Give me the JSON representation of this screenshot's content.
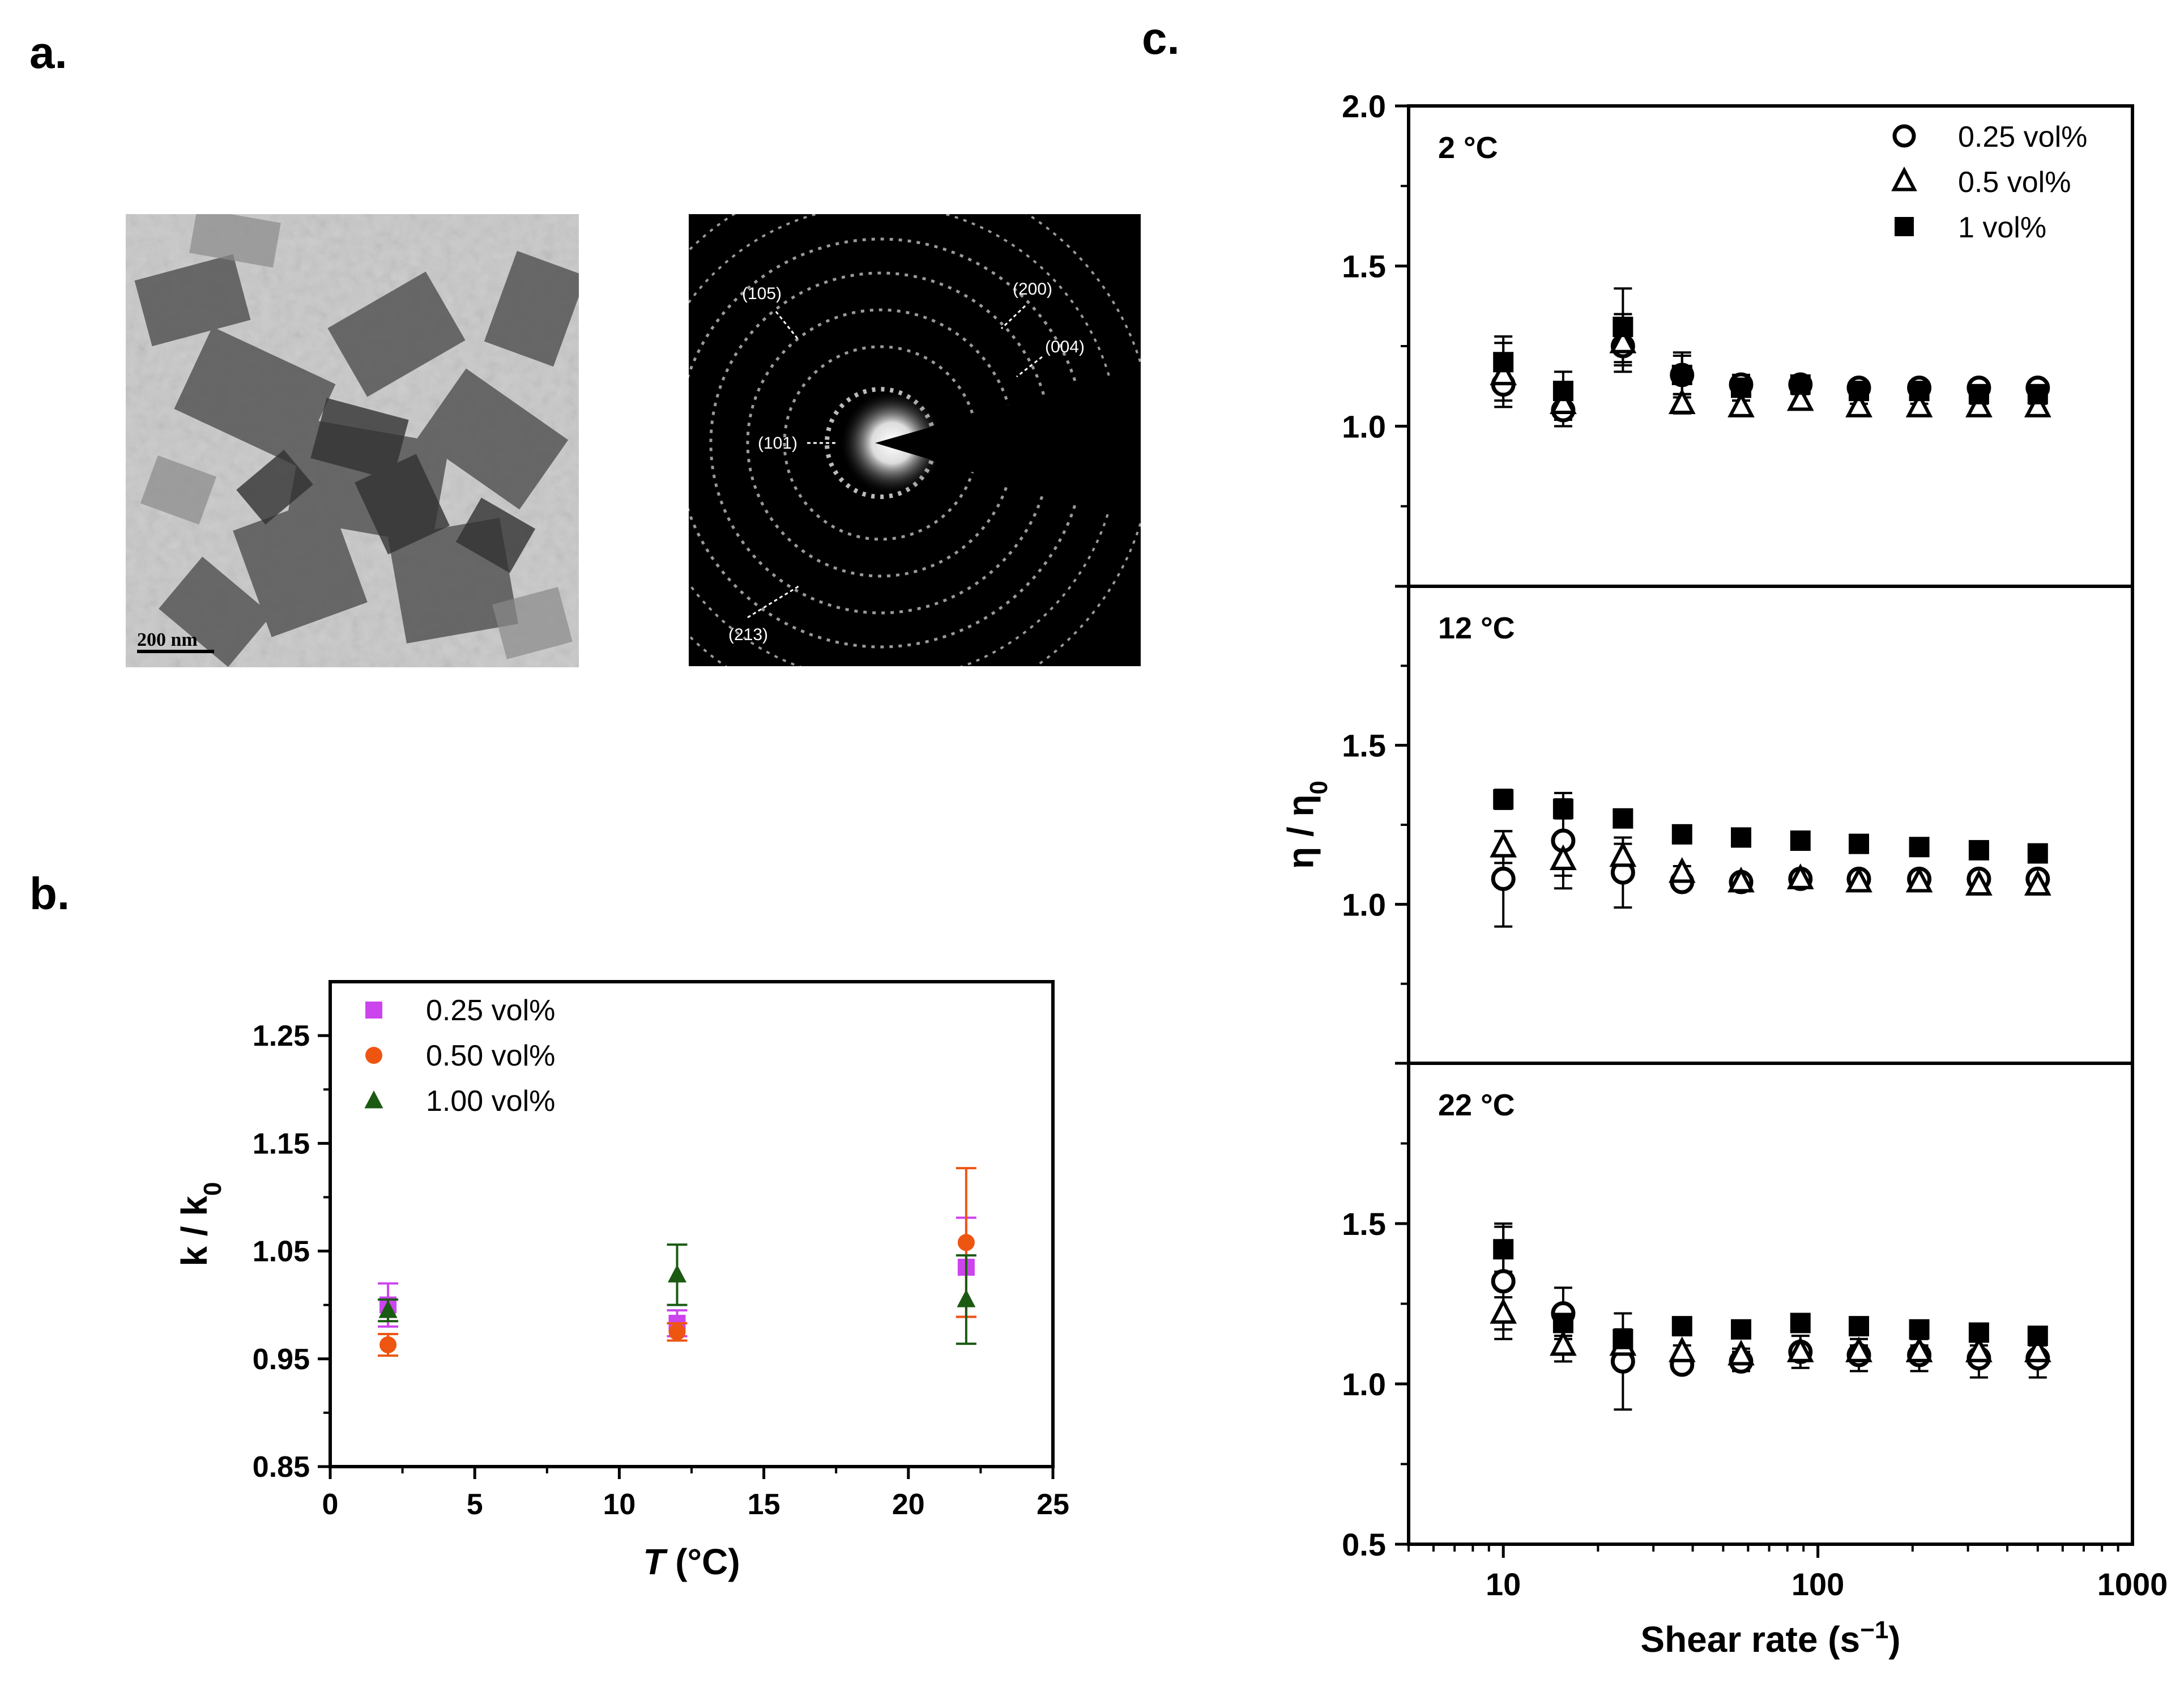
{
  "panel_labels": {
    "a": "a.",
    "b": "b.",
    "c": "c."
  },
  "micrographs": {
    "tem_scale_bar": "200 nm",
    "saed_labels": [
      "(105)",
      "(200)",
      "(004)",
      "(101)",
      "(213)"
    ]
  },
  "colors": {
    "magenta": "#cc44ee",
    "orange": "#ee5511",
    "green": "#1a5a12",
    "black": "#000000"
  },
  "chart_data": [
    {
      "id": "b",
      "type": "scatter",
      "title": "",
      "xlabel_symbol": "T",
      "xlabel_unit": "(°C)",
      "ylabel": "k / k",
      "ylabel_sub": "0",
      "xlim": [
        0,
        25
      ],
      "ylim": [
        0.85,
        1.3
      ],
      "xticks": [
        0,
        5,
        10,
        15,
        20,
        25
      ],
      "yticks": [
        0.85,
        0.95,
        1.05,
        1.15,
        1.25
      ],
      "ytick_labels": [
        "0.85",
        "0.95",
        "1.05",
        "1.15",
        "1.25"
      ],
      "legend_position": "top-left",
      "series": [
        {
          "name": "0.25 vol%",
          "marker": "square",
          "color": "#cc44ee",
          "x": [
            2,
            12,
            22
          ],
          "y": [
            1.0,
            0.983,
            1.035
          ],
          "err": [
            0.02,
            0.012,
            0.046
          ]
        },
        {
          "name": "0.50 vol%",
          "marker": "circle",
          "color": "#ee5511",
          "x": [
            2,
            12,
            22
          ],
          "y": [
            0.963,
            0.975,
            1.058
          ],
          "err": [
            0.01,
            0.008,
            0.069
          ]
        },
        {
          "name": "1.00 vol%",
          "marker": "triangle",
          "color": "#1a5a12",
          "x": [
            2,
            12,
            22
          ],
          "y": [
            0.995,
            1.028,
            1.005
          ],
          "err": [
            0.01,
            0.028,
            0.041
          ]
        }
      ]
    },
    {
      "id": "c",
      "type": "scatter",
      "xlabel": "Shear rate (s",
      "xlabel_sup": "−1",
      "xlabel_end": ")",
      "ylabel": "η / η",
      "ylabel_sub": "0",
      "xscale": "log",
      "xlim": [
        5,
        1000
      ],
      "xticks": [
        10,
        100,
        1000
      ],
      "ylim": [
        0.5,
        2.0
      ],
      "yticks": [
        0.5,
        1.0,
        1.5,
        2.0
      ],
      "ytick_labels": [
        "0.5",
        "1.0",
        "1.5",
        "2.0"
      ],
      "legend_position": "top-right",
      "x": [
        10,
        15.5,
        24,
        37,
        57,
        88,
        135,
        210,
        325,
        500
      ],
      "subplots": [
        {
          "label": "2 °C",
          "ylim": [
            0.5,
            2.0
          ],
          "series": [
            {
              "name": "0.25 vol%",
              "marker": "open-circle",
              "y": [
                1.13,
                1.05,
                1.25,
                1.16,
                1.13,
                1.13,
                1.12,
                1.12,
                1.12,
                1.12
              ],
              "err": [
                0.05,
                0.05,
                0.05,
                0.06,
                0.03,
                0.02,
                0.02,
                0.01,
                0.01,
                0.01
              ]
            },
            {
              "name": "0.5 vol%",
              "marker": "open-triangle",
              "y": [
                1.16,
                1.07,
                1.26,
                1.07,
                1.06,
                1.08,
                1.06,
                1.06,
                1.06,
                1.06
              ],
              "err": [
                0.1,
                0.05,
                0.09,
                0.03,
                0.02,
                0.02,
                0.01,
                0.01,
                0.01,
                0.01
              ]
            },
            {
              "name": "1 vol%",
              "marker": "filled-square",
              "y": [
                1.2,
                1.11,
                1.31,
                1.16,
                1.12,
                1.13,
                1.11,
                1.11,
                1.1,
                1.1
              ],
              "err": [
                0.08,
                0.06,
                0.12,
                0.07,
                0.04,
                0.02,
                0.02,
                0.01,
                0.01,
                0.01
              ]
            }
          ]
        },
        {
          "label": "12 °C",
          "ylim": [
            0.5,
            2.0
          ],
          "series": [
            {
              "name": "0.25 vol%",
              "marker": "open-circle",
              "y": [
                1.08,
                1.2,
                1.1,
                1.07,
                1.07,
                1.08,
                1.08,
                1.08,
                1.08,
                1.08
              ],
              "err": [
                0.15,
                0.15,
                0.11,
                0.02,
                0.02,
                0.02,
                0.02,
                0.02,
                0.02,
                0.02
              ]
            },
            {
              "name": "0.5 vol%",
              "marker": "open-triangle",
              "y": [
                1.18,
                1.14,
                1.15,
                1.1,
                1.07,
                1.08,
                1.07,
                1.07,
                1.06,
                1.06
              ],
              "err": [
                0.05,
                0.05,
                0.04,
                0.02,
                0.01,
                0.01,
                0.01,
                0.01,
                0.01,
                0.01
              ]
            },
            {
              "name": "1 vol%",
              "marker": "filled-square",
              "y": [
                1.33,
                1.3,
                1.27,
                1.22,
                1.21,
                1.2,
                1.19,
                1.18,
                1.17,
                1.16
              ],
              "err": [
                0.03,
                0.03,
                0.02,
                0.01,
                0.01,
                0.01,
                0.01,
                0.01,
                0.01,
                0.01
              ]
            }
          ]
        },
        {
          "label": "22 °C",
          "ylim": [
            0.5,
            2.0
          ],
          "series": [
            {
              "name": "0.25 vol%",
              "marker": "open-circle",
              "y": [
                1.32,
                1.22,
                1.07,
                1.06,
                1.07,
                1.1,
                1.09,
                1.09,
                1.08,
                1.08
              ],
              "err": [
                0.18,
                0.08,
                0.15,
                0.02,
                0.03,
                0.05,
                0.05,
                0.05,
                0.06,
                0.06
              ]
            },
            {
              "name": "0.5 vol%",
              "marker": "open-triangle",
              "y": [
                1.22,
                1.12,
                1.12,
                1.1,
                1.09,
                1.1,
                1.1,
                1.1,
                1.1,
                1.1
              ],
              "err": [
                0.05,
                0.05,
                0.04,
                0.02,
                0.02,
                0.02,
                0.02,
                0.02,
                0.02,
                0.02
              ]
            },
            {
              "name": "1 vol%",
              "marker": "filled-square",
              "y": [
                1.42,
                1.19,
                1.14,
                1.18,
                1.17,
                1.19,
                1.18,
                1.17,
                1.16,
                1.15
              ],
              "err": [
                0.07,
                0.04,
                0.03,
                0.01,
                0.01,
                0.01,
                0.01,
                0.01,
                0.01,
                0.01
              ]
            }
          ]
        }
      ]
    }
  ]
}
